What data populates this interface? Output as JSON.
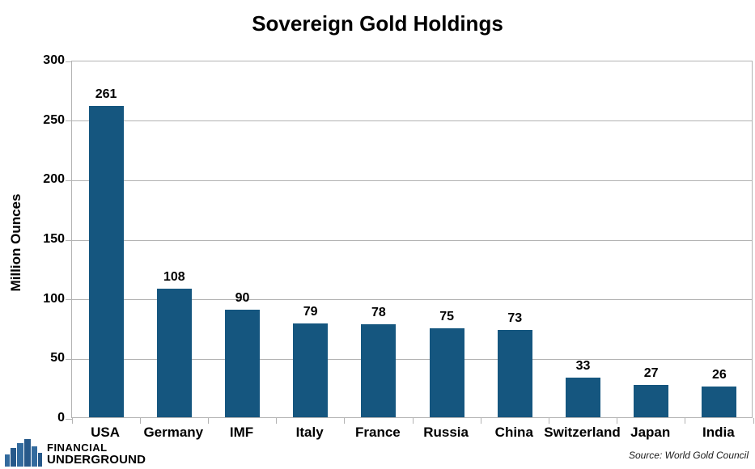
{
  "page": {
    "title": "Sovereign Gold Holdings"
  },
  "chart_data": {
    "type": "bar",
    "title": "Sovereign Gold Holdings",
    "categories": [
      "USA",
      "Germany",
      "IMF",
      "Italy",
      "France",
      "Russia",
      "China",
      "Switzerland",
      "Japan",
      "India"
    ],
    "values": [
      261,
      108,
      90,
      79,
      78,
      75,
      73,
      33,
      27,
      26
    ],
    "xlabel": "",
    "ylabel": "Million Ounces",
    "ylim": [
      0,
      300
    ],
    "yticks": [
      0,
      50,
      100,
      150,
      200,
      250,
      300
    ],
    "grid": true,
    "legend": false,
    "data_labels": true,
    "bar_color": "#15567F"
  },
  "footer": {
    "source": "Source: World Gold Council",
    "logo": {
      "line1": "FINANCIAL",
      "line2": "UNDERGROUND",
      "icon": "skyline-icon"
    }
  },
  "colors": {
    "bar": "#15567F",
    "grid": "#b3b3b3",
    "axis": "#b3b3b3",
    "text": "#000000",
    "background": "#ffffff",
    "logo_financial": "#7f9dbb",
    "logo_underground": "#55b13a",
    "logo_icon_dark": "#27598a",
    "logo_icon_light": "#336b9e"
  }
}
